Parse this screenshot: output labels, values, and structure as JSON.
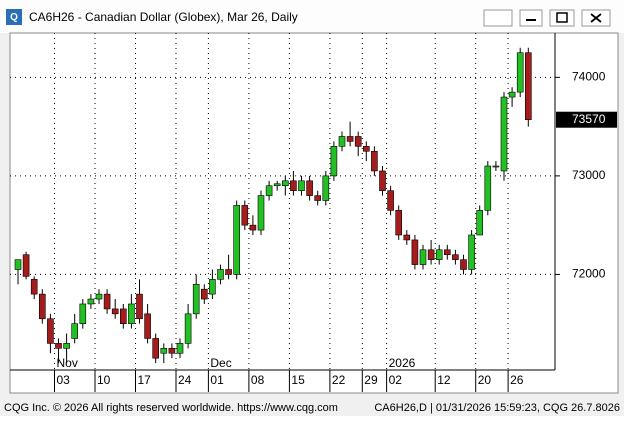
{
  "chart_data": {
    "type": "candlestick",
    "title": "CA6H26 - Canadian Dollar (Globex), Mar 26, Daily",
    "footer_left": "CQG Inc. © 2026 All rights reserved worldwide. https://www.cqg.com",
    "footer_right": "CA6H26,D | 01/31/2026 15:59:23, CQG 26.7.8026",
    "categories": [
      null,
      null,
      null,
      null,
      null,
      "03",
      null,
      null,
      null,
      null,
      "10",
      null,
      null,
      null,
      null,
      "17",
      null,
      null,
      null,
      null,
      "24",
      null,
      null,
      null,
      "01",
      null,
      null,
      null,
      null,
      "08",
      null,
      null,
      null,
      null,
      "15",
      null,
      null,
      null,
      null,
      "22",
      null,
      null,
      null,
      "29",
      null,
      null,
      "02",
      null,
      null,
      null,
      null,
      null,
      "12",
      null,
      null,
      null,
      null,
      "20",
      null,
      null,
      null,
      "26",
      null,
      null
    ],
    "months": [
      null,
      null,
      null,
      null,
      null,
      "Nov",
      null,
      null,
      null,
      null,
      null,
      null,
      null,
      null,
      null,
      null,
      null,
      null,
      null,
      null,
      null,
      null,
      null,
      null,
      "Dec",
      null,
      null,
      null,
      null,
      null,
      null,
      null,
      null,
      null,
      null,
      null,
      null,
      null,
      null,
      null,
      null,
      null,
      null,
      null,
      null,
      null,
      "2026",
      null,
      null,
      null,
      null,
      null,
      null,
      null,
      null,
      null,
      null,
      null,
      null,
      null,
      null,
      null,
      null,
      null
    ],
    "open": [
      72050,
      72200,
      71950,
      71800,
      71550,
      71300,
      71250,
      71350,
      71500,
      71700,
      71750,
      71800,
      71650,
      71650,
      71500,
      71800,
      71600,
      71350,
      71200,
      71250,
      71200,
      71300,
      71600,
      71850,
      71800,
      71950,
      72050,
      72000,
      72700,
      72500,
      72450,
      72800,
      72900,
      72900,
      72950,
      72850,
      72950,
      72800,
      72750,
      73000,
      73300,
      73400,
      73400,
      73300,
      73250,
      73050,
      72850,
      72650,
      72400,
      72350,
      72100,
      72250,
      72150,
      72250,
      72200,
      72150,
      72050,
      72400,
      72650,
      73100,
      73050,
      73800,
      73850,
      74250
    ],
    "high": [
      72150,
      72230,
      71980,
      71850,
      71600,
      71350,
      71400,
      71600,
      71750,
      71800,
      71850,
      71850,
      71750,
      71700,
      71800,
      71950,
      71700,
      71400,
      71300,
      71300,
      71350,
      71700,
      72000,
      71900,
      72050,
      72100,
      72200,
      72750,
      72750,
      72600,
      72850,
      72950,
      72950,
      73000,
      73050,
      73000,
      73000,
      72850,
      73050,
      73350,
      73450,
      73550,
      73450,
      73350,
      73300,
      73100,
      72900,
      72700,
      72450,
      72400,
      72300,
      72350,
      72300,
      72300,
      72250,
      72200,
      72450,
      72700,
      73150,
      73150,
      73850,
      73900,
      74300,
      74300
    ],
    "low": [
      71900,
      71950,
      71750,
      71500,
      71200,
      71100,
      71100,
      71300,
      71450,
      71650,
      71700,
      71600,
      71550,
      71450,
      71450,
      71500,
      71300,
      71100,
      71100,
      71150,
      71150,
      71250,
      71550,
      71700,
      71750,
      71900,
      71950,
      71950,
      72450,
      72400,
      72400,
      72750,
      72850,
      72800,
      72800,
      72800,
      72750,
      72700,
      72700,
      72950,
      73250,
      73300,
      73200,
      73150,
      73000,
      72800,
      72600,
      72350,
      72300,
      72050,
      72050,
      72100,
      72100,
      72150,
      72100,
      72000,
      72000,
      72400,
      72600,
      73050,
      72950,
      73700,
      73800,
      73500
    ],
    "close": [
      72150,
      71980,
      71800,
      71550,
      71300,
      71250,
      71300,
      71500,
      71700,
      71750,
      71800,
      71650,
      71600,
      71500,
      71700,
      71550,
      71350,
      71150,
      71250,
      71200,
      71300,
      71600,
      71900,
      71750,
      71950,
      72050,
      72000,
      72700,
      72500,
      72450,
      72800,
      72900,
      72920,
      72950,
      72850,
      72950,
      72800,
      72750,
      73000,
      73300,
      73400,
      73350,
      73300,
      73250,
      73050,
      72850,
      72650,
      72400,
      72350,
      72100,
      72250,
      72150,
      72250,
      72200,
      72150,
      72050,
      72400,
      72650,
      73100,
      73100,
      73800,
      73850,
      74250,
      73570
    ],
    "up_color": "#22c022",
    "down_color": "#a51c1c",
    "last_price": 73570,
    "ylim": [
      71030,
      74450
    ],
    "yticks": [
      72000,
      73000,
      74000
    ],
    "grid": true
  }
}
